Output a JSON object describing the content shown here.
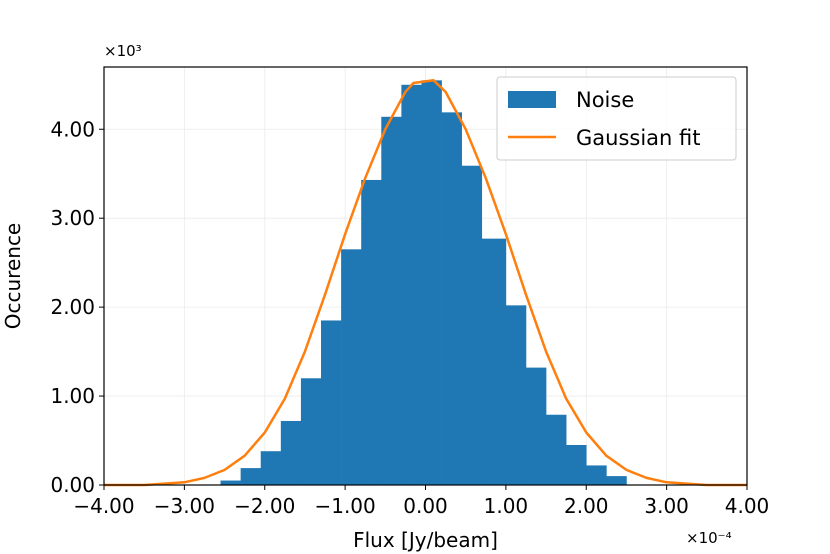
{
  "chart_data": {
    "type": "bar",
    "title": "",
    "xlabel": "Flux [Jy/beam]",
    "ylabel": "Occurence",
    "x_multiplier": "×10⁻⁴",
    "y_multiplier": "×10³",
    "xlim": [
      -4.0,
      4.0
    ],
    "ylim": [
      0,
      4.7
    ],
    "x_ticks": [
      -4,
      -3,
      -2,
      -1,
      0,
      1,
      2,
      3,
      4
    ],
    "x_tick_labels": [
      "−4.00",
      "−3.00",
      "−2.00",
      "−1.00",
      "0.00",
      "1.00",
      "2.00",
      "3.00",
      "4.00"
    ],
    "y_ticks": [
      0,
      1,
      2,
      3,
      4
    ],
    "y_tick_labels": [
      "0.00",
      "1.00",
      "2.00",
      "3.00",
      "4.00"
    ],
    "grid": true,
    "legend_position": "top-right",
    "histogram": {
      "name": "Noise",
      "color": "#1f77b4",
      "bin_edges": [
        -2.55,
        -2.3,
        -2.05,
        -1.8,
        -1.55,
        -1.3,
        -1.05,
        -0.8,
        -0.55,
        -0.3,
        -0.05,
        0.2,
        0.45,
        0.7,
        1.0,
        1.25,
        1.5,
        1.75,
        2.0,
        2.25,
        2.5
      ],
      "counts": [
        0.05,
        0.19,
        0.38,
        0.72,
        1.2,
        1.85,
        2.65,
        3.43,
        4.14,
        4.5,
        4.55,
        4.19,
        3.59,
        2.77,
        2.02,
        1.32,
        0.79,
        0.45,
        0.22,
        0.1
      ]
    },
    "fit": {
      "name": "Gaussian fit",
      "color": "#ff7f0e",
      "x": [
        -4.0,
        -3.5,
        -3.0,
        -2.75,
        -2.5,
        -2.25,
        -2.0,
        -1.75,
        -1.5,
        -1.25,
        -1.0,
        -0.75,
        -0.5,
        -0.25,
        -0.15,
        0.1,
        0.25,
        0.5,
        0.75,
        1.0,
        1.25,
        1.5,
        1.75,
        2.0,
        2.25,
        2.5,
        2.75,
        3.0,
        3.5,
        4.0
      ],
      "y": [
        0.0,
        0.0,
        0.03,
        0.08,
        0.17,
        0.33,
        0.59,
        0.97,
        1.5,
        2.14,
        2.82,
        3.45,
        4.0,
        4.42,
        4.52,
        4.55,
        4.42,
        4.0,
        3.45,
        2.82,
        2.14,
        1.5,
        0.97,
        0.59,
        0.33,
        0.17,
        0.08,
        0.03,
        0.0,
        0.0
      ]
    }
  }
}
